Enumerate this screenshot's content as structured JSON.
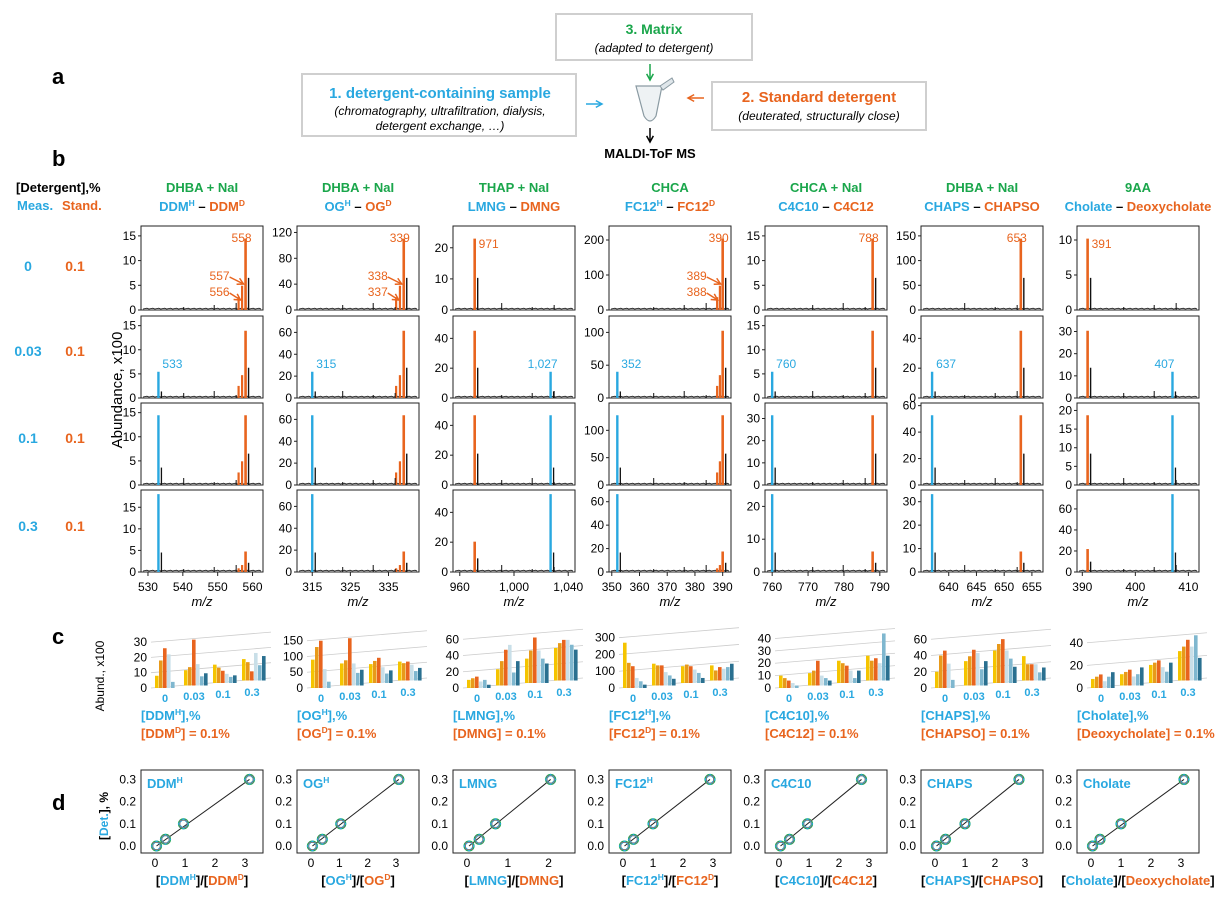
{
  "workflow": {
    "panel_label": "a",
    "sample_title": "1. detergent-containing sample",
    "sample_sub1": "(chromatography, ultrafiltration, dialysis,",
    "sample_sub2": "detergent exchange, …)",
    "matrix_title": "3. Matrix",
    "matrix_sub": "(adapted to detergent)",
    "standard_title": "2. Standard detergent",
    "standard_sub": "(deuterated, structurally close)",
    "output": "MALDI-ToF MS"
  },
  "panel_b": {
    "label": "b",
    "row_header": "[Detergent],%",
    "meas_label": "Meas.",
    "stand_label": "Stand.",
    "ylabel": "Abundance, x100",
    "xlabel": "m/z",
    "rows": [
      {
        "meas": "0",
        "stand": "0.1"
      },
      {
        "meas": "0.03",
        "stand": "0.1"
      },
      {
        "meas": "0.1",
        "stand": "0.1"
      },
      {
        "meas": "0.3",
        "stand": "0.1"
      }
    ],
    "columns": [
      {
        "matrix": "DHBA + NaI",
        "det_h": "DDM",
        "det_h_sup": "H",
        "det_s": "DDM",
        "det_s_sup": "D",
        "xticks": [
          "530",
          "540",
          "550",
          "560"
        ],
        "xlim": [
          528,
          563
        ],
        "yticks": [
          [
            "0",
            "5",
            "10",
            "15"
          ],
          [
            "0",
            "5",
            "10",
            "15"
          ],
          [
            "0",
            "5",
            "10",
            "15"
          ],
          [
            "0",
            "5",
            "10",
            "15"
          ]
        ],
        "ymax": [
          17,
          17,
          17,
          19
        ],
        "meas_peak": 533,
        "std_peak": 558,
        "std_sub": [
          556,
          557
        ],
        "annot": [
          [
            "558",
            "557",
            "556"
          ],
          [
            "533"
          ],
          [],
          []
        ]
      },
      {
        "matrix": "DHBA + NaI",
        "det_h": "OG",
        "det_h_sup": "H",
        "det_s": "OG",
        "det_s_sup": "D",
        "xticks": [
          "315",
          "325",
          "335"
        ],
        "xlim": [
          311,
          343
        ],
        "yticks": [
          [
            "0",
            "40",
            "80",
            "120"
          ],
          [
            "0",
            "20",
            "40",
            "60"
          ],
          [
            "0",
            "20",
            "40",
            "60"
          ],
          [
            "0",
            "20",
            "40",
            "60"
          ]
        ],
        "ymax": [
          130,
          75,
          75,
          75
        ],
        "meas_peak": 315,
        "std_peak": 339,
        "std_sub": [
          337,
          338
        ],
        "annot": [
          [
            "339",
            "338",
            "337"
          ],
          [
            "315"
          ],
          [],
          []
        ]
      },
      {
        "matrix": "THAP + NaI",
        "det_h": "LMNG",
        "det_h_sup": "",
        "det_s": "DMNG",
        "det_s_sup": "",
        "xticks": [
          "960",
          "1,000",
          "1,040"
        ],
        "xlim": [
          955,
          1045
        ],
        "yticks": [
          [
            "0",
            "10",
            "20"
          ],
          [
            "0",
            "20",
            "40"
          ],
          [
            "0",
            "20",
            "40"
          ],
          [
            "0",
            "20",
            "40"
          ]
        ],
        "ymax": [
          27,
          55,
          55,
          55
        ],
        "meas_peak": 1027,
        "std_peak": 971,
        "std_sub": [],
        "annot": [
          [
            "971"
          ],
          [
            "1,027"
          ],
          [],
          []
        ]
      },
      {
        "matrix": "CHCA",
        "det_h": "FC12",
        "det_h_sup": "H",
        "det_s": "FC12",
        "det_s_sup": "D",
        "xticks": [
          "350",
          "360",
          "370",
          "380",
          "390"
        ],
        "xlim": [
          349,
          393
        ],
        "yticks": [
          [
            "0",
            "100",
            "200"
          ],
          [
            "0",
            "50",
            "100"
          ],
          [
            "0",
            "50",
            "100"
          ],
          [
            "0",
            "20",
            "40",
            "60"
          ]
        ],
        "ymax": [
          240,
          125,
          150,
          70
        ],
        "meas_peak": 352,
        "std_peak": 390,
        "std_sub": [
          388,
          389
        ],
        "annot": [
          [
            "390",
            "389",
            "388"
          ],
          [
            "352"
          ],
          [],
          []
        ]
      },
      {
        "matrix": "CHCA + NaI",
        "det_h": "C4C10",
        "det_h_sup": "",
        "det_s": "C4C12",
        "det_s_sup": "",
        "xticks": [
          "760",
          "770",
          "780",
          "790"
        ],
        "xlim": [
          758,
          792
        ],
        "yticks": [
          [
            "0",
            "5",
            "10",
            "15"
          ],
          [
            "0",
            "5",
            "10",
            "15"
          ],
          [
            "0",
            "10",
            "20",
            "30"
          ],
          [
            "0",
            "10",
            "20"
          ]
        ],
        "ymax": [
          17,
          17,
          37,
          25
        ],
        "meas_peak": 760,
        "std_peak": 788,
        "std_sub": [],
        "annot": [
          [
            "788"
          ],
          [
            "760"
          ],
          [],
          []
        ]
      },
      {
        "matrix": "DHBA + NaI",
        "det_h": "CHAPS",
        "det_h_sup": "",
        "det_s": "CHAPSO",
        "det_s_sup": "",
        "xticks": [
          "640",
          "645",
          "650",
          "655"
        ],
        "xlim": [
          635,
          657
        ],
        "yticks": [
          [
            "0",
            "50",
            "100",
            "150"
          ],
          [
            "0",
            "20",
            "40"
          ],
          [
            "0",
            "20",
            "40",
            "60"
          ],
          [
            "0",
            "10",
            "20",
            "30"
          ]
        ],
        "ymax": [
          170,
          55,
          62,
          35
        ],
        "meas_peak": 637,
        "std_peak": 653,
        "std_sub": [],
        "annot": [
          [
            "653"
          ],
          [
            "637"
          ],
          [],
          []
        ]
      },
      {
        "matrix": "9AA",
        "det_h": "Cholate",
        "det_h_sup": "",
        "det_s": "Deoxycholate",
        "det_s_sup": "",
        "xticks": [
          "390",
          "400",
          "410"
        ],
        "xlim": [
          389,
          412
        ],
        "yticks": [
          [
            "0",
            "5",
            "10"
          ],
          [
            "0",
            "10",
            "20",
            "30"
          ],
          [
            "0",
            "5",
            "10",
            "15",
            "20"
          ],
          [
            "0",
            "20",
            "40",
            "60"
          ]
        ],
        "ymax": [
          12,
          37,
          22,
          78
        ],
        "meas_peak": 407,
        "std_peak": 391,
        "std_sub": [],
        "annot": [
          [
            "391"
          ],
          [
            "407"
          ],
          [],
          []
        ]
      }
    ]
  },
  "panel_c": {
    "label": "c",
    "ylabel": "Abund., x100",
    "xticks": [
      "0",
      "0.03",
      "0.1",
      "0.3"
    ],
    "charts": [
      {
        "x_label": "[DDM",
        "x_sup": "H",
        "x_tail": "],%",
        "std_label": "[DDM",
        "std_sup": "D",
        "std_tail": "] = 0.1%",
        "yticks": [
          "0",
          "10",
          "20",
          "30"
        ],
        "ymax": 34,
        "values": [
          [
            8,
            18,
            26,
            22,
            4,
            0
          ],
          [
            10,
            12,
            30,
            14,
            6,
            8
          ],
          [
            12,
            10,
            8,
            6,
            4,
            5
          ],
          [
            14,
            12,
            6,
            18,
            10,
            16
          ]
        ]
      },
      {
        "x_label": "[OG",
        "x_sup": "H",
        "x_tail": "],%",
        "std_label": "[OG",
        "std_sup": "D",
        "std_tail": "] = 0.1%",
        "yticks": [
          "0",
          "50",
          "100",
          "150"
        ],
        "ymax": 165,
        "values": [
          [
            90,
            130,
            150,
            60,
            20,
            0
          ],
          [
            70,
            80,
            150,
            70,
            40,
            50
          ],
          [
            60,
            70,
            80,
            50,
            30,
            40
          ],
          [
            60,
            55,
            60,
            50,
            30,
            40
          ]
        ]
      },
      {
        "x_label": "[LMNG",
        "x_sup": "",
        "x_tail": "],%",
        "std_label": "[DMNG",
        "std_sup": "",
        "std_tail": "] = 0.1%",
        "yticks": [
          "0",
          "20",
          "40",
          "60"
        ],
        "ymax": 64,
        "values": [
          [
            10,
            12,
            14,
            8,
            10,
            4
          ],
          [
            20,
            30,
            44,
            50,
            16,
            30
          ],
          [
            30,
            40,
            56,
            40,
            30,
            24
          ],
          [
            40,
            46,
            50,
            50,
            44,
            38
          ]
        ]
      },
      {
        "x_label": "[FC12",
        "x_sup": "H",
        "x_tail": "],%",
        "std_label": "[FC12",
        "std_sup": "D",
        "std_tail": "] = 0.1%",
        "yticks": [
          "0",
          "100",
          "200",
          "300"
        ],
        "ymax": 310,
        "values": [
          [
            270,
            150,
            130,
            60,
            40,
            20
          ],
          [
            130,
            120,
            120,
            80,
            60,
            40
          ],
          [
            100,
            110,
            100,
            80,
            60,
            30
          ],
          [
            90,
            60,
            80,
            70,
            80,
            100
          ]
        ]
      },
      {
        "x_label": "[C4C10",
        "x_sup": "",
        "x_tail": "],%",
        "std_label": "[C4C12",
        "std_sup": "",
        "std_tail": "] = 0.1%",
        "yticks": [
          "0",
          "10",
          "20",
          "30",
          "40"
        ],
        "ymax": 42,
        "values": [
          [
            10,
            8,
            6,
            4,
            2,
            0
          ],
          [
            10,
            12,
            20,
            8,
            6,
            4
          ],
          [
            18,
            16,
            14,
            10,
            4,
            10
          ],
          [
            20,
            16,
            18,
            14,
            38,
            20
          ]
        ]
      },
      {
        "x_label": "[CHAPS",
        "x_sup": "",
        "x_tail": "],%",
        "std_label": "[CHAPSO",
        "std_sup": "",
        "std_tail": "] = 0.1%",
        "yticks": [
          "0",
          "20",
          "40",
          "60"
        ],
        "ymax": 64,
        "values": [
          [
            20,
            40,
            46,
            30,
            10,
            0
          ],
          [
            30,
            36,
            44,
            40,
            20,
            30
          ],
          [
            40,
            48,
            54,
            40,
            30,
            20
          ],
          [
            30,
            20,
            20,
            20,
            10,
            16
          ]
        ]
      },
      {
        "x_label": "[Cholate",
        "x_sup": "",
        "x_tail": "],%",
        "std_label": "[Deoxycholate",
        "std_sup": "",
        "std_tail": "] = 0.1%",
        "yticks": [
          "0",
          "20",
          "40"
        ],
        "ymax": 46,
        "values": [
          [
            8,
            10,
            12,
            6,
            10,
            14
          ],
          [
            10,
            12,
            14,
            8,
            10,
            16
          ],
          [
            16,
            18,
            20,
            14,
            10,
            18
          ],
          [
            26,
            30,
            36,
            30,
            40,
            20
          ]
        ]
      }
    ]
  },
  "panel_d": {
    "label": "d",
    "ylabel": "[Det.], %",
    "yticks": [
      "0.0",
      "0.1",
      "0.2",
      "0.3"
    ],
    "charts": [
      {
        "name": "DDM",
        "sup": "H",
        "xname": "DDM",
        "xsup": "H",
        "sname": "DDM",
        "ssup": "D",
        "xticks": [
          "0",
          "1",
          "2",
          "3"
        ],
        "xmax": 3.4,
        "points": [
          [
            0.05,
            0
          ],
          [
            0.35,
            0.03
          ],
          [
            0.95,
            0.1
          ],
          [
            3.15,
            0.3
          ]
        ]
      },
      {
        "name": "OG",
        "sup": "H",
        "xname": "OG",
        "xsup": "H",
        "sname": "OG",
        "ssup": "D",
        "xticks": [
          "0",
          "1",
          "2",
          "3"
        ],
        "xmax": 3.6,
        "points": [
          [
            0.05,
            0
          ],
          [
            0.4,
            0.03
          ],
          [
            1.05,
            0.1
          ],
          [
            3.1,
            0.3
          ]
        ]
      },
      {
        "name": "LMNG",
        "sup": "",
        "xname": "LMNG",
        "xsup": "",
        "sname": "DMNG",
        "ssup": "",
        "xticks": [
          "0",
          "1",
          "2"
        ],
        "xmax": 2.5,
        "points": [
          [
            0.05,
            0
          ],
          [
            0.3,
            0.03
          ],
          [
            0.7,
            0.1
          ],
          [
            2.05,
            0.3
          ]
        ]
      },
      {
        "name": "FC12",
        "sup": "H",
        "xname": "FC12",
        "xsup": "H",
        "sname": "FC12",
        "ssup": "D",
        "xticks": [
          "0",
          "1",
          "2",
          "3"
        ],
        "xmax": 3.4,
        "points": [
          [
            0.05,
            0
          ],
          [
            0.35,
            0.03
          ],
          [
            1.0,
            0.1
          ],
          [
            2.9,
            0.3
          ]
        ]
      },
      {
        "name": "C4C10",
        "sup": "",
        "xname": "C4C10",
        "xsup": "",
        "sname": "C4C12",
        "ssup": "",
        "xticks": [
          "0",
          "1",
          "2",
          "3"
        ],
        "xmax": 3.4,
        "points": [
          [
            0.05,
            0
          ],
          [
            0.35,
            0.03
          ],
          [
            0.95,
            0.1
          ],
          [
            2.75,
            0.3
          ]
        ]
      },
      {
        "name": "CHAPS",
        "sup": "",
        "xname": "CHAPS",
        "xsup": "",
        "sname": "CHAPSO",
        "ssup": "",
        "xticks": [
          "0",
          "1",
          "2",
          "3"
        ],
        "xmax": 3.4,
        "points": [
          [
            0.05,
            0
          ],
          [
            0.35,
            0.03
          ],
          [
            1.0,
            0.1
          ],
          [
            2.8,
            0.3
          ]
        ]
      },
      {
        "name": "Cholate",
        "sup": "",
        "xname": "Cholate",
        "xsup": "",
        "sname": "Deoxycholate",
        "ssup": "",
        "xticks": [
          "0",
          "1",
          "2",
          "3"
        ],
        "xmax": 3.4,
        "points": [
          [
            0.05,
            0
          ],
          [
            0.3,
            0.03
          ],
          [
            1.0,
            0.1
          ],
          [
            3.1,
            0.3
          ]
        ]
      }
    ]
  },
  "colors": {
    "blue": "#29a8e0",
    "orange": "#e8641e",
    "green": "#1aa64b",
    "black": "#111111",
    "bar_palette": [
      "#f5c400",
      "#e89a1a",
      "#e8641e",
      "#c9dfe8",
      "#7fb7cf",
      "#2a7090"
    ]
  }
}
